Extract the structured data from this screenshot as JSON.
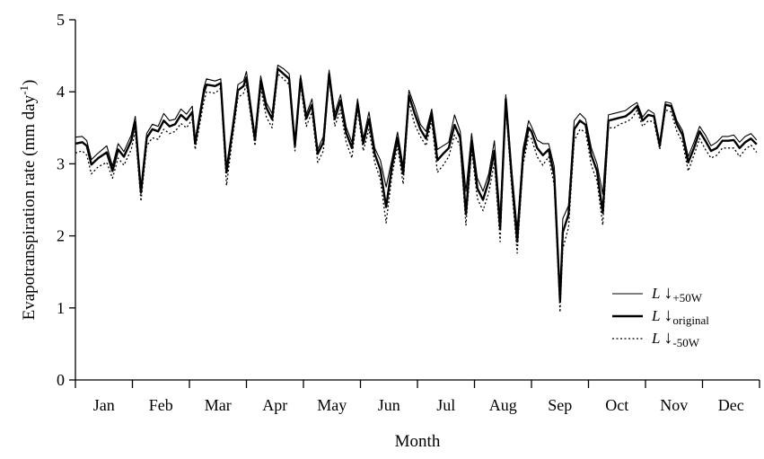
{
  "chart_data": {
    "type": "line",
    "xlabel": "Month",
    "ylabel": "Evapotranspiration rate (mm day",
    "ylabel_sup": "-1",
    "ylabel_close": ")",
    "ylim": [
      0,
      5
    ],
    "yticks": [
      "0",
      "1",
      "2",
      "3",
      "4",
      "5"
    ],
    "xlim": [
      0,
      12
    ],
    "months": [
      "Jan",
      "Feb",
      "Mar",
      "Apr",
      "May",
      "Jun",
      "Jul",
      "Aug",
      "Sep",
      "Oct",
      "Nov",
      "Dec"
    ],
    "grid": false,
    "legend_position": "lower-right",
    "series": [
      {
        "label_main": "L",
        "label_arrow": "↓",
        "label_sub": "+50W",
        "style": "thin-solid",
        "x": [
          0.0,
          0.12,
          0.2,
          0.28,
          0.4,
          0.55,
          0.65,
          0.75,
          0.85,
          0.98,
          1.05,
          1.15,
          1.25,
          1.35,
          1.45,
          1.55,
          1.65,
          1.75,
          1.85,
          1.95,
          2.05,
          2.1,
          2.25,
          2.3,
          2.45,
          2.55,
          2.65,
          2.75,
          2.85,
          2.95,
          3.0,
          3.15,
          3.25,
          3.35,
          3.45,
          3.55,
          3.65,
          3.75,
          3.85,
          3.95,
          4.05,
          4.15,
          4.25,
          4.35,
          4.45,
          4.55,
          4.65,
          4.75,
          4.85,
          4.95,
          5.05,
          5.15,
          5.25,
          5.35,
          5.45,
          5.55,
          5.65,
          5.75,
          5.85,
          5.95,
          6.05,
          6.15,
          6.25,
          6.35,
          6.45,
          6.55,
          6.65,
          6.75,
          6.85,
          6.95,
          7.05,
          7.15,
          7.25,
          7.35,
          7.45,
          7.55,
          7.65,
          7.75,
          7.85,
          7.95,
          8.0,
          8.1,
          8.2,
          8.3,
          8.4,
          8.5,
          8.55,
          8.65,
          8.75,
          8.85,
          8.95,
          9.05,
          9.15,
          9.25,
          9.35,
          9.45,
          9.55,
          9.65,
          9.75,
          9.85,
          9.95,
          10.05,
          10.15,
          10.25,
          10.35,
          10.45,
          10.55,
          10.65,
          10.75,
          10.85,
          10.95,
          11.05,
          11.15,
          11.25,
          11.35,
          11.45,
          11.55,
          11.65,
          11.75,
          11.85,
          11.95
        ],
        "y": [
          3.37,
          3.38,
          3.32,
          3.06,
          3.15,
          3.25,
          2.97,
          3.28,
          3.17,
          3.4,
          3.66,
          2.68,
          3.42,
          3.55,
          3.52,
          3.7,
          3.6,
          3.62,
          3.76,
          3.69,
          3.8,
          3.33,
          4.05,
          4.18,
          4.15,
          4.18,
          2.96,
          3.5,
          4.1,
          4.15,
          4.28,
          3.4,
          4.22,
          3.85,
          3.7,
          4.37,
          4.32,
          4.25,
          3.3,
          4.23,
          3.69,
          3.9,
          3.2,
          3.38,
          4.3,
          3.7,
          3.96,
          3.51,
          3.3,
          3.9,
          3.35,
          3.72,
          3.22,
          3.05,
          2.68,
          3.05,
          3.44,
          2.97,
          4.02,
          3.8,
          3.55,
          3.45,
          3.76,
          3.2,
          3.25,
          3.3,
          3.68,
          3.45,
          2.62,
          3.42,
          2.8,
          2.62,
          2.86,
          3.32,
          2.26,
          3.96,
          2.95,
          2.1,
          3.2,
          3.6,
          3.52,
          3.33,
          3.28,
          3.28,
          2.96,
          1.18,
          2.24,
          2.42,
          3.6,
          3.7,
          3.62,
          3.22,
          3.0,
          2.58,
          3.68,
          3.7,
          3.72,
          3.74,
          3.8,
          3.85,
          3.65,
          3.75,
          3.7,
          3.3,
          3.86,
          3.84,
          3.6,
          3.46,
          3.1,
          3.3,
          3.52,
          3.4,
          3.25,
          3.3,
          3.38,
          3.38,
          3.4,
          3.3,
          3.38,
          3.42,
          3.33
        ]
      },
      {
        "label_main": "L",
        "label_arrow": "↓",
        "label_sub": "original",
        "style": "thick-solid",
        "x": [
          0.0,
          0.12,
          0.2,
          0.28,
          0.4,
          0.55,
          0.65,
          0.75,
          0.85,
          0.98,
          1.05,
          1.15,
          1.25,
          1.35,
          1.45,
          1.55,
          1.65,
          1.75,
          1.85,
          1.95,
          2.05,
          2.1,
          2.25,
          2.3,
          2.45,
          2.55,
          2.65,
          2.75,
          2.85,
          2.95,
          3.0,
          3.15,
          3.25,
          3.35,
          3.45,
          3.55,
          3.65,
          3.75,
          3.85,
          3.95,
          4.05,
          4.15,
          4.25,
          4.35,
          4.45,
          4.55,
          4.65,
          4.75,
          4.85,
          4.95,
          5.05,
          5.15,
          5.25,
          5.35,
          5.45,
          5.55,
          5.65,
          5.75,
          5.85,
          5.95,
          6.05,
          6.15,
          6.25,
          6.35,
          6.45,
          6.55,
          6.65,
          6.75,
          6.85,
          6.95,
          7.05,
          7.15,
          7.25,
          7.35,
          7.45,
          7.55,
          7.65,
          7.75,
          7.85,
          7.95,
          8.0,
          8.1,
          8.2,
          8.3,
          8.4,
          8.5,
          8.55,
          8.65,
          8.75,
          8.85,
          8.95,
          9.05,
          9.15,
          9.25,
          9.35,
          9.45,
          9.55,
          9.65,
          9.75,
          9.85,
          9.95,
          10.05,
          10.15,
          10.25,
          10.35,
          10.45,
          10.55,
          10.65,
          10.75,
          10.85,
          10.95,
          11.05,
          11.15,
          11.25,
          11.35,
          11.45,
          11.55,
          11.65,
          11.75,
          11.85,
          11.95
        ],
        "y": [
          3.28,
          3.3,
          3.25,
          2.99,
          3.08,
          3.16,
          2.9,
          3.2,
          3.1,
          3.32,
          3.58,
          2.6,
          3.36,
          3.48,
          3.45,
          3.6,
          3.52,
          3.55,
          3.68,
          3.61,
          3.72,
          3.28,
          3.98,
          4.1,
          4.08,
          4.12,
          2.88,
          3.43,
          4.02,
          4.08,
          4.2,
          3.33,
          4.15,
          3.78,
          3.62,
          4.32,
          4.25,
          4.18,
          3.25,
          4.18,
          3.63,
          3.82,
          3.14,
          3.3,
          4.25,
          3.62,
          3.88,
          3.43,
          3.22,
          3.84,
          3.28,
          3.62,
          3.14,
          2.92,
          2.4,
          2.95,
          3.36,
          2.86,
          3.95,
          3.7,
          3.48,
          3.35,
          3.7,
          3.05,
          3.14,
          3.22,
          3.54,
          3.36,
          2.3,
          3.32,
          2.66,
          2.5,
          2.76,
          3.18,
          2.1,
          3.9,
          2.85,
          1.92,
          3.1,
          3.5,
          3.45,
          3.22,
          3.12,
          3.2,
          2.84,
          1.1,
          2.05,
          2.3,
          3.48,
          3.6,
          3.54,
          3.12,
          2.9,
          2.32,
          3.6,
          3.62,
          3.64,
          3.66,
          3.72,
          3.8,
          3.6,
          3.68,
          3.66,
          3.25,
          3.82,
          3.8,
          3.55,
          3.4,
          3.02,
          3.22,
          3.45,
          3.32,
          3.18,
          3.22,
          3.32,
          3.32,
          3.33,
          3.22,
          3.3,
          3.35,
          3.27
        ]
      },
      {
        "label_main": "L",
        "label_arrow": "↓",
        "label_sub": "-50W",
        "style": "dotted",
        "x": [
          0.0,
          0.12,
          0.2,
          0.28,
          0.4,
          0.55,
          0.65,
          0.75,
          0.85,
          0.98,
          1.05,
          1.15,
          1.25,
          1.35,
          1.45,
          1.55,
          1.65,
          1.75,
          1.85,
          1.95,
          2.05,
          2.1,
          2.25,
          2.3,
          2.45,
          2.55,
          2.65,
          2.75,
          2.85,
          2.95,
          3.0,
          3.15,
          3.25,
          3.35,
          3.45,
          3.55,
          3.65,
          3.75,
          3.85,
          3.95,
          4.05,
          4.15,
          4.25,
          4.35,
          4.45,
          4.55,
          4.65,
          4.75,
          4.85,
          4.95,
          5.05,
          5.15,
          5.25,
          5.35,
          5.45,
          5.55,
          5.65,
          5.75,
          5.85,
          5.95,
          6.05,
          6.15,
          6.25,
          6.35,
          6.45,
          6.55,
          6.65,
          6.75,
          6.85,
          6.95,
          7.05,
          7.15,
          7.25,
          7.35,
          7.45,
          7.55,
          7.65,
          7.75,
          7.85,
          7.95,
          8.0,
          8.1,
          8.2,
          8.3,
          8.4,
          8.5,
          8.55,
          8.65,
          8.75,
          8.85,
          8.95,
          9.05,
          9.15,
          9.25,
          9.35,
          9.45,
          9.55,
          9.65,
          9.75,
          9.85,
          9.95,
          10.05,
          10.15,
          10.25,
          10.35,
          10.45,
          10.55,
          10.65,
          10.75,
          10.85,
          10.95,
          11.05,
          11.15,
          11.25,
          11.35,
          11.45,
          11.55,
          11.65,
          11.75,
          11.85,
          11.95
        ],
        "y": [
          3.15,
          3.18,
          3.12,
          2.86,
          2.96,
          3.02,
          2.8,
          3.08,
          2.98,
          3.2,
          3.45,
          2.48,
          3.25,
          3.36,
          3.34,
          3.48,
          3.42,
          3.45,
          3.56,
          3.5,
          3.62,
          3.2,
          3.85,
          4.0,
          3.98,
          4.05,
          2.7,
          3.32,
          3.92,
          3.98,
          4.1,
          3.25,
          4.05,
          3.65,
          3.5,
          4.25,
          4.18,
          4.1,
          3.18,
          4.1,
          3.52,
          3.72,
          3.02,
          3.18,
          4.2,
          3.52,
          3.75,
          3.3,
          3.08,
          3.75,
          3.18,
          3.48,
          3.02,
          2.78,
          2.18,
          2.82,
          3.25,
          2.72,
          3.85,
          3.55,
          3.38,
          3.25,
          3.6,
          2.88,
          2.98,
          3.1,
          3.4,
          3.25,
          2.15,
          3.2,
          2.52,
          2.35,
          2.6,
          3.02,
          1.92,
          3.8,
          2.7,
          1.76,
          2.98,
          3.38,
          3.35,
          3.1,
          2.98,
          3.1,
          2.7,
          0.94,
          1.82,
          2.12,
          3.32,
          3.48,
          3.44,
          2.98,
          2.76,
          2.15,
          3.5,
          3.5,
          3.55,
          3.58,
          3.62,
          3.74,
          3.52,
          3.6,
          3.58,
          3.2,
          3.75,
          3.72,
          3.45,
          3.3,
          2.9,
          3.12,
          3.35,
          3.2,
          3.08,
          3.12,
          3.22,
          3.22,
          3.22,
          3.1,
          3.2,
          3.26,
          3.16
        ]
      }
    ]
  }
}
